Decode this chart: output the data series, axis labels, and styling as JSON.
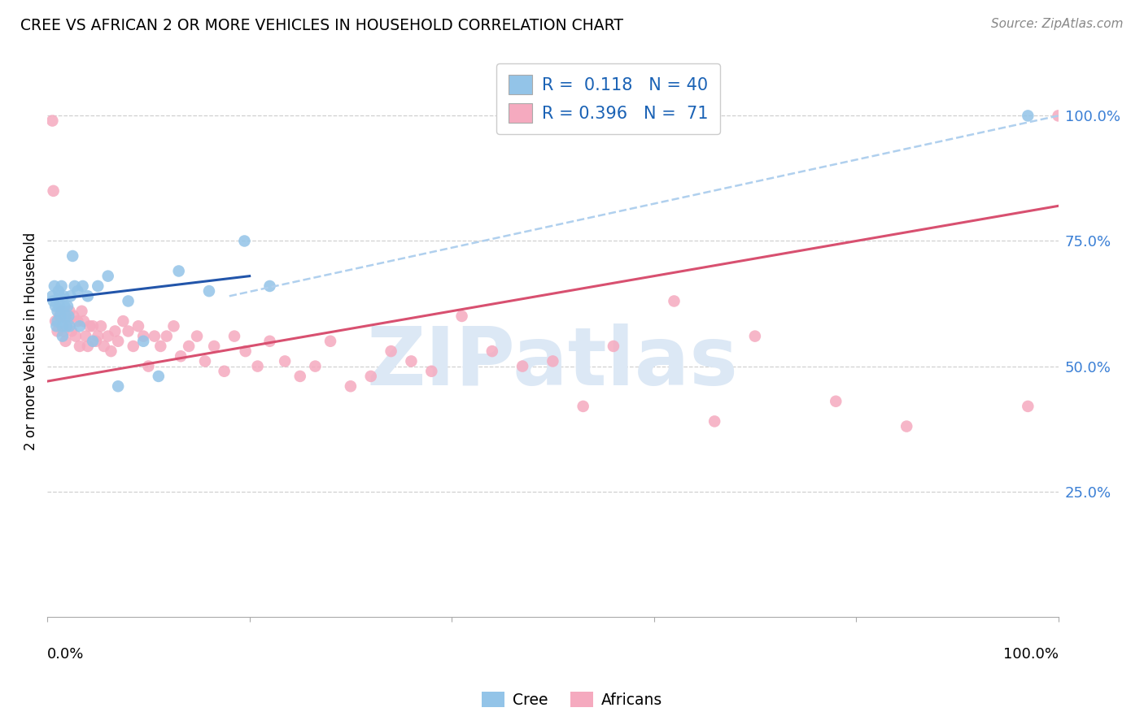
{
  "title": "CREE VS AFRICAN 2 OR MORE VEHICLES IN HOUSEHOLD CORRELATION CHART",
  "source": "Source: ZipAtlas.com",
  "ylabel": "2 or more Vehicles in Household",
  "cree_R": 0.118,
  "cree_N": 40,
  "african_R": 0.396,
  "african_N": 71,
  "cree_color": "#93c4e8",
  "african_color": "#f5aabf",
  "cree_line_color": "#2255aa",
  "african_line_color": "#d85070",
  "dashed_line_color": "#b0d0ee",
  "legend_text_color": "#1a62b5",
  "watermark_text": "ZIPatlas",
  "watermark_color": "#dce8f5",
  "grid_color": "#d0d0d0",
  "ytick_color": "#3a7fd5",
  "ytick_values": [
    0.25,
    0.5,
    0.75,
    1.0
  ],
  "xmin": 0.0,
  "xmax": 1.0,
  "ymin": 0.0,
  "ymax": 1.1,
  "cree_line_x": [
    0.0,
    0.2
  ],
  "cree_line_y": [
    0.632,
    0.68
  ],
  "african_line_x": [
    0.0,
    1.0
  ],
  "african_line_y": [
    0.47,
    0.82
  ],
  "dashed_line_x": [
    0.18,
    1.0
  ],
  "dashed_line_y": [
    0.64,
    1.0
  ],
  "cree_x": [
    0.005,
    0.006,
    0.007,
    0.008,
    0.009,
    0.01,
    0.01,
    0.011,
    0.012,
    0.012,
    0.013,
    0.014,
    0.015,
    0.015,
    0.016,
    0.017,
    0.018,
    0.019,
    0.02,
    0.021,
    0.022,
    0.023,
    0.025,
    0.027,
    0.03,
    0.032,
    0.035,
    0.04,
    0.045,
    0.05,
    0.06,
    0.07,
    0.08,
    0.095,
    0.11,
    0.13,
    0.16,
    0.195,
    0.22,
    0.97
  ],
  "cree_y": [
    0.64,
    0.63,
    0.66,
    0.62,
    0.58,
    0.61,
    0.59,
    0.65,
    0.64,
    0.62,
    0.6,
    0.66,
    0.58,
    0.56,
    0.64,
    0.62,
    0.6,
    0.58,
    0.62,
    0.6,
    0.58,
    0.64,
    0.72,
    0.66,
    0.65,
    0.58,
    0.66,
    0.64,
    0.55,
    0.66,
    0.68,
    0.46,
    0.63,
    0.55,
    0.48,
    0.69,
    0.65,
    0.75,
    0.66,
    1.0
  ],
  "african_x": [
    0.005,
    0.006,
    0.008,
    0.01,
    0.012,
    0.014,
    0.016,
    0.018,
    0.02,
    0.022,
    0.024,
    0.026,
    0.028,
    0.03,
    0.032,
    0.034,
    0.036,
    0.038,
    0.04,
    0.042,
    0.045,
    0.048,
    0.05,
    0.053,
    0.056,
    0.06,
    0.063,
    0.067,
    0.07,
    0.075,
    0.08,
    0.085,
    0.09,
    0.095,
    0.1,
    0.106,
    0.112,
    0.118,
    0.125,
    0.132,
    0.14,
    0.148,
    0.156,
    0.165,
    0.175,
    0.185,
    0.196,
    0.208,
    0.22,
    0.235,
    0.25,
    0.265,
    0.28,
    0.3,
    0.32,
    0.34,
    0.36,
    0.38,
    0.41,
    0.44,
    0.47,
    0.5,
    0.53,
    0.56,
    0.62,
    0.66,
    0.7,
    0.78,
    0.85,
    0.97,
    1.0
  ],
  "african_y": [
    0.99,
    0.85,
    0.59,
    0.57,
    0.6,
    0.61,
    0.57,
    0.55,
    0.59,
    0.61,
    0.57,
    0.6,
    0.56,
    0.59,
    0.54,
    0.61,
    0.59,
    0.56,
    0.54,
    0.58,
    0.58,
    0.55,
    0.56,
    0.58,
    0.54,
    0.56,
    0.53,
    0.57,
    0.55,
    0.59,
    0.57,
    0.54,
    0.58,
    0.56,
    0.5,
    0.56,
    0.54,
    0.56,
    0.58,
    0.52,
    0.54,
    0.56,
    0.51,
    0.54,
    0.49,
    0.56,
    0.53,
    0.5,
    0.55,
    0.51,
    0.48,
    0.5,
    0.55,
    0.46,
    0.48,
    0.53,
    0.51,
    0.49,
    0.6,
    0.53,
    0.5,
    0.51,
    0.42,
    0.54,
    0.63,
    0.39,
    0.56,
    0.43,
    0.38,
    0.42,
    1.0
  ]
}
